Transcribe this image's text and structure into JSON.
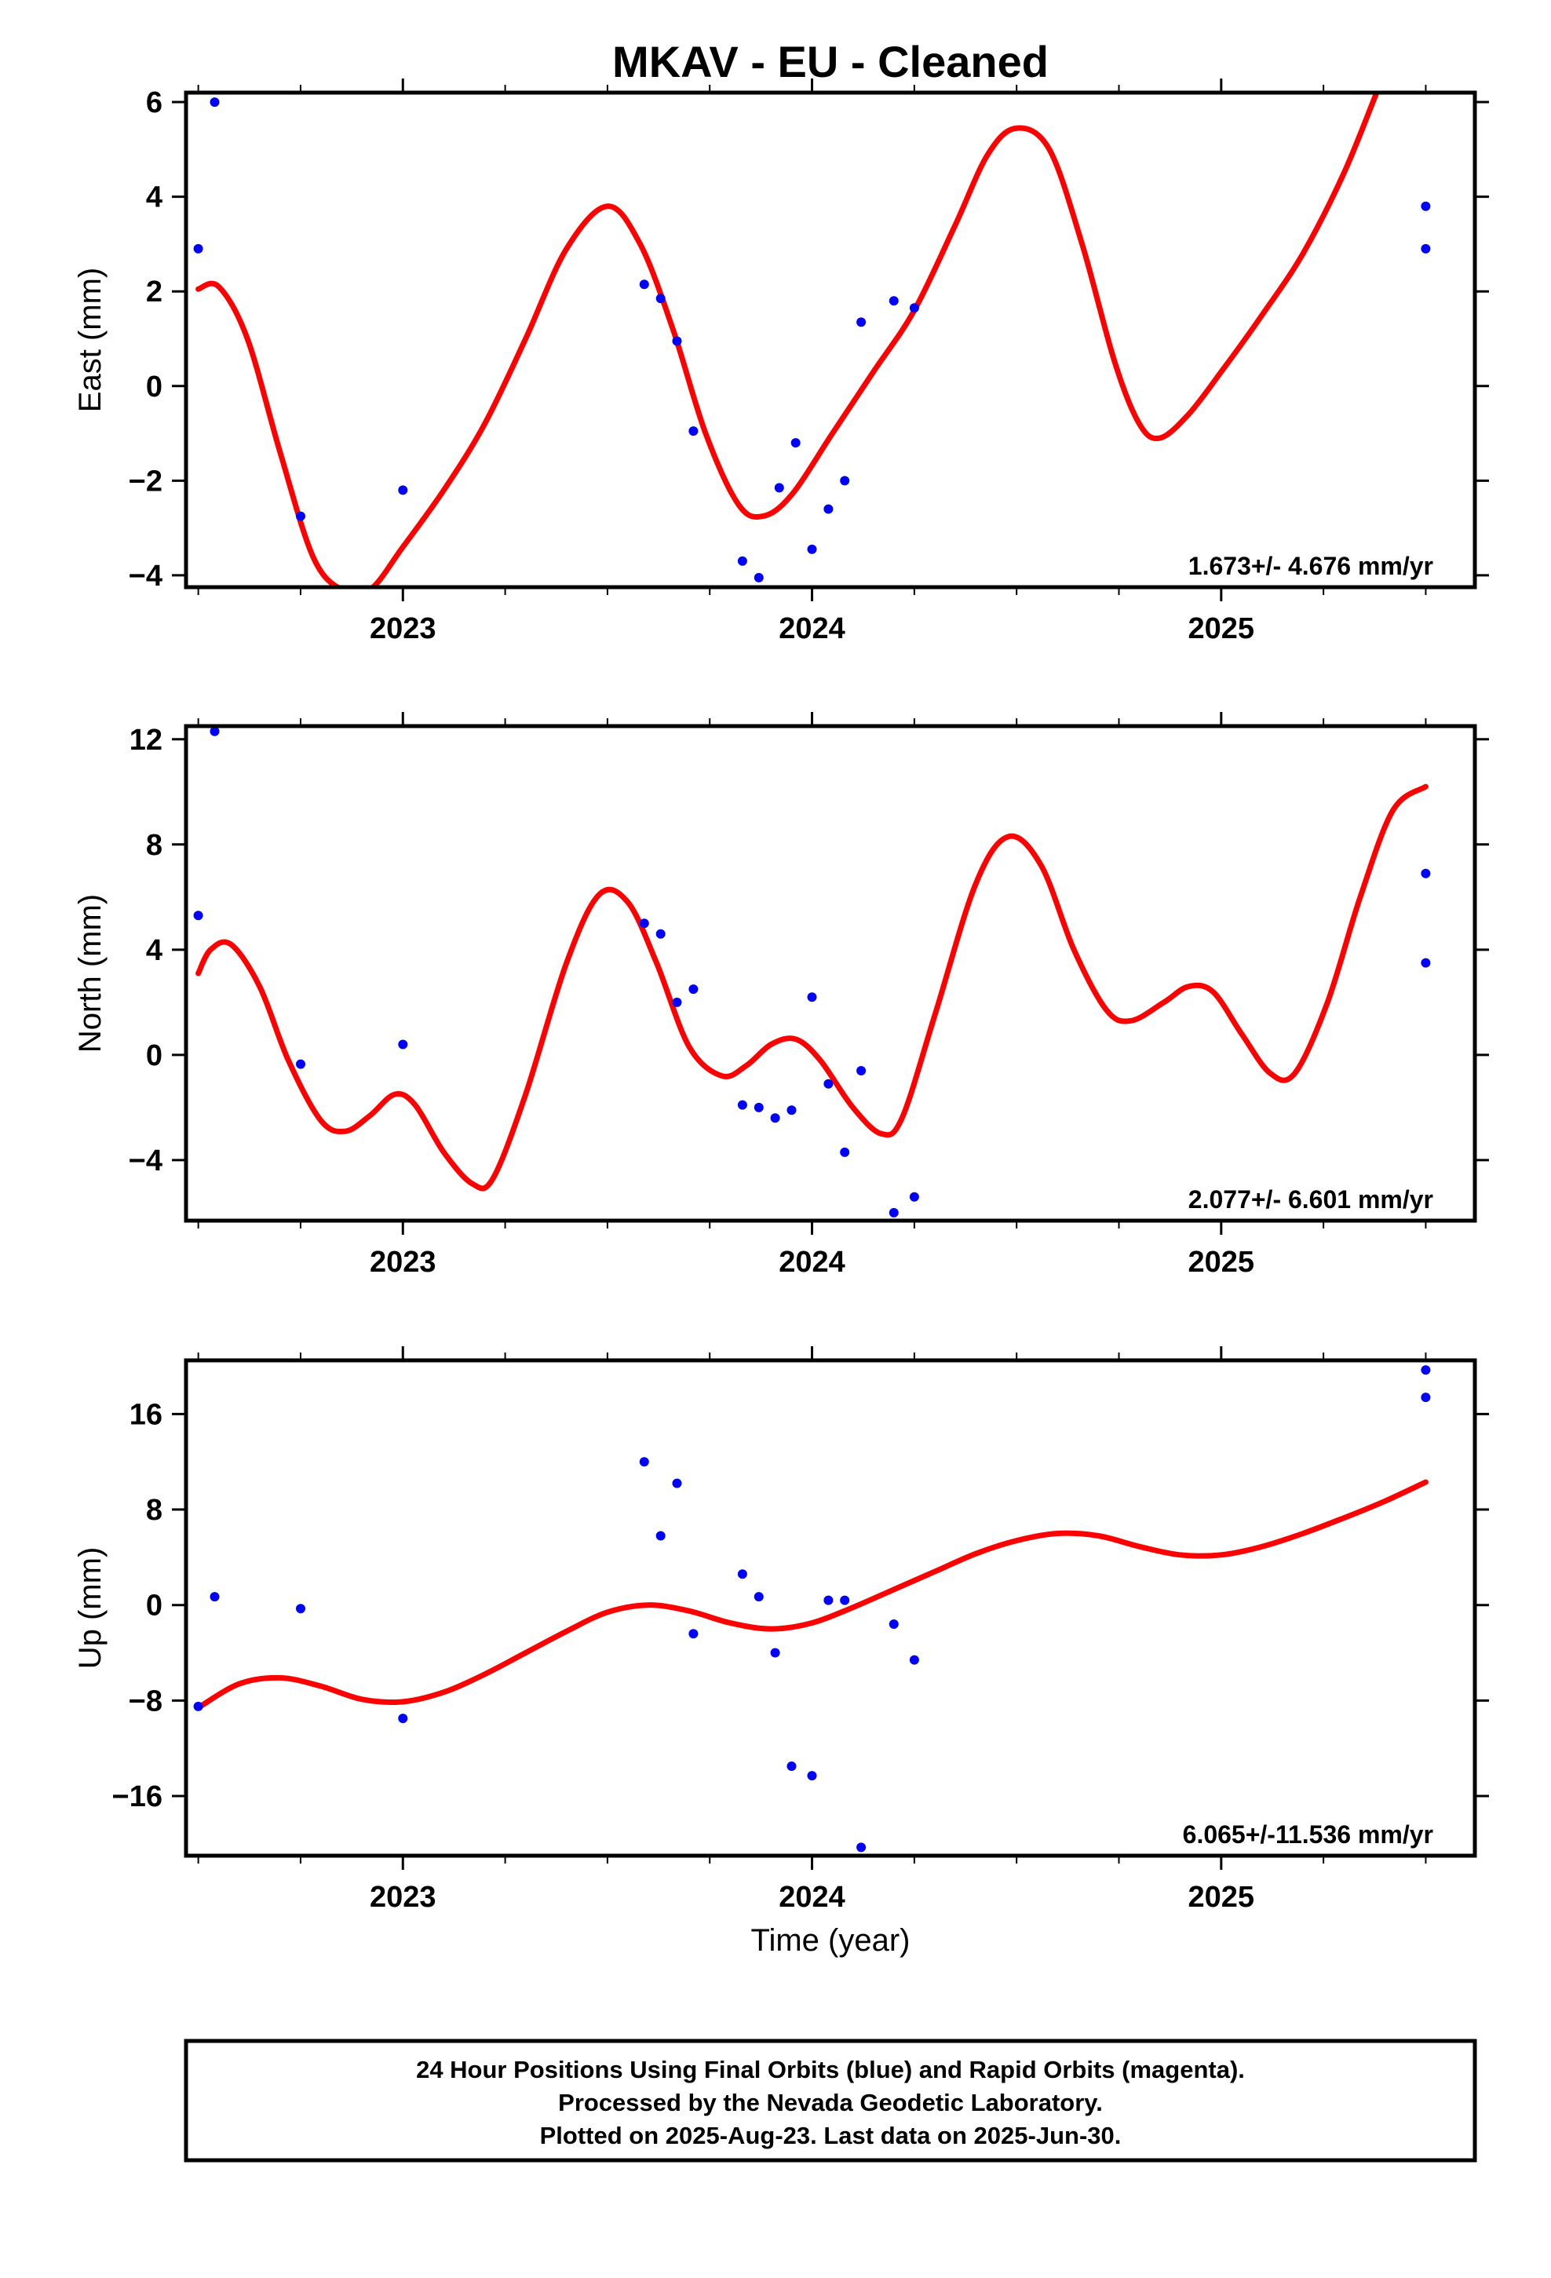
{
  "chart_data": {
    "title": "MKAV  - EU - Cleaned",
    "xlabel": "Time (year)",
    "xlim": [
      2022.47,
      2025.62
    ],
    "x_ticks": [
      2023,
      2024,
      2025
    ],
    "x_tick_labels": [
      "2023",
      "2024",
      "2025"
    ],
    "colors": {
      "points": "#0000ff",
      "fit": "#ff0000",
      "frame": "#000000"
    },
    "panels": [
      {
        "type": "scatter",
        "ylabel": "East (mm)",
        "ylim": [
          -4.25,
          6.2
        ],
        "y_ticks": [
          -4,
          -2,
          0,
          2,
          4,
          6
        ],
        "y_tick_labels": [
          "−4",
          "−2",
          "0",
          "2",
          "4",
          "6"
        ],
        "rate": "1.673+/- 4.676 mm/yr",
        "points": [
          [
            2022.5,
            2.9
          ],
          [
            2022.54,
            6.0
          ],
          [
            2022.75,
            -2.75
          ],
          [
            2023.0,
            -2.2
          ],
          [
            2023.59,
            2.15
          ],
          [
            2023.63,
            1.85
          ],
          [
            2023.67,
            0.95
          ],
          [
            2023.71,
            -0.95
          ],
          [
            2023.83,
            -3.7
          ],
          [
            2023.87,
            -4.05
          ],
          [
            2023.92,
            -2.15
          ],
          [
            2023.96,
            -1.2
          ],
          [
            2024.0,
            -3.45
          ],
          [
            2024.04,
            -2.6
          ],
          [
            2024.08,
            -2.0
          ],
          [
            2024.12,
            1.35
          ],
          [
            2024.2,
            1.8
          ],
          [
            2024.25,
            1.65
          ],
          [
            2025.5,
            3.8
          ],
          [
            2025.5,
            2.9
          ]
        ],
        "fit": [
          [
            2022.5,
            2.05
          ],
          [
            2022.55,
            2.1
          ],
          [
            2022.62,
            1.0
          ],
          [
            2022.7,
            -1.4
          ],
          [
            2022.78,
            -3.6
          ],
          [
            2022.85,
            -4.3
          ],
          [
            2022.92,
            -4.3
          ],
          [
            2023.0,
            -3.4
          ],
          [
            2023.1,
            -2.2
          ],
          [
            2023.2,
            -0.8
          ],
          [
            2023.3,
            1.0
          ],
          [
            2023.4,
            2.9
          ],
          [
            2023.5,
            3.8
          ],
          [
            2023.58,
            3.0
          ],
          [
            2023.66,
            1.2
          ],
          [
            2023.74,
            -1.0
          ],
          [
            2023.82,
            -2.5
          ],
          [
            2023.88,
            -2.75
          ],
          [
            2023.95,
            -2.3
          ],
          [
            2024.05,
            -1.0
          ],
          [
            2024.15,
            0.3
          ],
          [
            2024.25,
            1.6
          ],
          [
            2024.35,
            3.4
          ],
          [
            2024.43,
            4.9
          ],
          [
            2024.5,
            5.45
          ],
          [
            2024.58,
            5.0
          ],
          [
            2024.66,
            3.0
          ],
          [
            2024.74,
            0.5
          ],
          [
            2024.8,
            -0.8
          ],
          [
            2024.85,
            -1.1
          ],
          [
            2024.92,
            -0.6
          ],
          [
            2025.0,
            0.3
          ],
          [
            2025.1,
            1.5
          ],
          [
            2025.2,
            2.8
          ],
          [
            2025.3,
            4.5
          ],
          [
            2025.38,
            6.2
          ]
        ]
      },
      {
        "type": "scatter",
        "ylabel": "North (mm)",
        "ylim": [
          -6.3,
          12.5
        ],
        "y_ticks": [
          -4,
          0,
          4,
          8,
          12
        ],
        "y_tick_labels": [
          "−4",
          "0",
          "4",
          "8",
          "12"
        ],
        "rate": "2.077+/- 6.601 mm/yr",
        "points": [
          [
            2022.5,
            5.3
          ],
          [
            2022.54,
            12.3
          ],
          [
            2022.75,
            -0.35
          ],
          [
            2023.0,
            0.4
          ],
          [
            2023.59,
            5.0
          ],
          [
            2023.63,
            4.6
          ],
          [
            2023.67,
            2.0
          ],
          [
            2023.71,
            2.5
          ],
          [
            2023.83,
            -1.9
          ],
          [
            2023.87,
            -2.0
          ],
          [
            2023.91,
            -2.4
          ],
          [
            2023.95,
            -2.1
          ],
          [
            2024.0,
            2.2
          ],
          [
            2024.04,
            -1.1
          ],
          [
            2024.08,
            -3.7
          ],
          [
            2024.12,
            -0.6
          ],
          [
            2024.2,
            -6.0
          ],
          [
            2024.25,
            -5.4
          ],
          [
            2025.5,
            6.9
          ],
          [
            2025.5,
            3.5
          ]
        ],
        "fit": [
          [
            2022.5,
            3.1
          ],
          [
            2022.53,
            4.0
          ],
          [
            2022.58,
            4.2
          ],
          [
            2022.65,
            2.6
          ],
          [
            2022.72,
            -0.2
          ],
          [
            2022.8,
            -2.5
          ],
          [
            2022.86,
            -2.9
          ],
          [
            2022.92,
            -2.3
          ],
          [
            2022.98,
            -1.5
          ],
          [
            2023.03,
            -1.9
          ],
          [
            2023.1,
            -3.7
          ],
          [
            2023.17,
            -4.9
          ],
          [
            2023.22,
            -4.7
          ],
          [
            2023.3,
            -1.5
          ],
          [
            2023.4,
            3.5
          ],
          [
            2023.48,
            6.1
          ],
          [
            2023.55,
            5.8
          ],
          [
            2023.62,
            3.5
          ],
          [
            2023.7,
            0.3
          ],
          [
            2023.78,
            -0.8
          ],
          [
            2023.84,
            -0.4
          ],
          [
            2023.9,
            0.4
          ],
          [
            2023.96,
            0.6
          ],
          [
            2024.02,
            -0.2
          ],
          [
            2024.1,
            -2.0
          ],
          [
            2024.17,
            -3.0
          ],
          [
            2024.22,
            -2.4
          ],
          [
            2024.3,
            1.5
          ],
          [
            2024.4,
            6.5
          ],
          [
            2024.48,
            8.3
          ],
          [
            2024.56,
            7.2
          ],
          [
            2024.64,
            4.0
          ],
          [
            2024.72,
            1.7
          ],
          [
            2024.78,
            1.3
          ],
          [
            2024.86,
            2.0
          ],
          [
            2024.92,
            2.6
          ],
          [
            2024.98,
            2.4
          ],
          [
            2025.05,
            0.8
          ],
          [
            2025.12,
            -0.7
          ],
          [
            2025.18,
            -0.7
          ],
          [
            2025.26,
            2.0
          ],
          [
            2025.34,
            6.0
          ],
          [
            2025.42,
            9.3
          ],
          [
            2025.5,
            10.2
          ]
        ]
      },
      {
        "type": "scatter",
        "ylabel": "Up (mm)",
        "ylim": [
          -21,
          20.5
        ],
        "y_ticks": [
          -16,
          -8,
          0,
          8,
          16
        ],
        "y_tick_labels": [
          "−16",
          "−8",
          "0",
          "8",
          "16"
        ],
        "rate": "6.065+/-11.536 mm/yr",
        "points": [
          [
            2022.5,
            -8.5
          ],
          [
            2022.54,
            0.7
          ],
          [
            2022.75,
            -0.3
          ],
          [
            2023.0,
            -9.5
          ],
          [
            2023.59,
            12.0
          ],
          [
            2023.63,
            5.8
          ],
          [
            2023.67,
            10.2
          ],
          [
            2023.71,
            -2.4
          ],
          [
            2023.83,
            2.6
          ],
          [
            2023.87,
            0.7
          ],
          [
            2023.91,
            -4.0
          ],
          [
            2023.95,
            -13.5
          ],
          [
            2024.0,
            -14.3
          ],
          [
            2024.04,
            0.4
          ],
          [
            2024.08,
            0.4
          ],
          [
            2024.12,
            -20.3
          ],
          [
            2024.2,
            -1.6
          ],
          [
            2024.25,
            -4.6
          ],
          [
            2025.5,
            19.7
          ],
          [
            2025.5,
            17.4
          ]
        ],
        "fit": [
          [
            2022.5,
            -8.6
          ],
          [
            2022.6,
            -6.6
          ],
          [
            2022.7,
            -6.1
          ],
          [
            2022.8,
            -6.8
          ],
          [
            2022.9,
            -7.9
          ],
          [
            2023.0,
            -8.1
          ],
          [
            2023.1,
            -7.3
          ],
          [
            2023.2,
            -5.8
          ],
          [
            2023.3,
            -4.0
          ],
          [
            2023.4,
            -2.2
          ],
          [
            2023.5,
            -0.6
          ],
          [
            2023.6,
            0.0
          ],
          [
            2023.7,
            -0.5
          ],
          [
            2023.8,
            -1.5
          ],
          [
            2023.9,
            -2.0
          ],
          [
            2024.0,
            -1.5
          ],
          [
            2024.1,
            -0.2
          ],
          [
            2024.2,
            1.3
          ],
          [
            2024.3,
            2.8
          ],
          [
            2024.4,
            4.3
          ],
          [
            2024.5,
            5.4
          ],
          [
            2024.6,
            6.0
          ],
          [
            2024.7,
            5.8
          ],
          [
            2024.8,
            4.9
          ],
          [
            2024.9,
            4.2
          ],
          [
            2025.0,
            4.2
          ],
          [
            2025.1,
            4.9
          ],
          [
            2025.2,
            6.0
          ],
          [
            2025.3,
            7.3
          ],
          [
            2025.4,
            8.7
          ],
          [
            2025.5,
            10.3
          ]
        ]
      }
    ]
  },
  "footer": {
    "line1": "24 Hour Positions Using Final Orbits (blue) and Rapid Orbits (magenta).",
    "line2": "Processed by the Nevada Geodetic Laboratory.",
    "line3": "Plotted on 2025-Aug-23. Last data on 2025-Jun-30."
  }
}
